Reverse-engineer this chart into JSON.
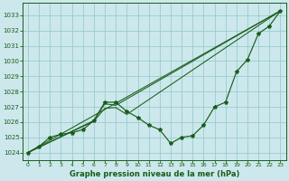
{
  "bg_color": "#cce8ec",
  "grid_color": "#99cccc",
  "line_color": "#1a5c1a",
  "xlabel": "Graphe pression niveau de la mer (hPa)",
  "xlim": [
    -0.5,
    23.5
  ],
  "ylim": [
    1023.5,
    1033.8
  ],
  "yticks": [
    1024,
    1025,
    1026,
    1027,
    1028,
    1029,
    1030,
    1031,
    1032,
    1033
  ],
  "xticks": [
    0,
    1,
    2,
    3,
    4,
    5,
    6,
    7,
    8,
    9,
    10,
    11,
    12,
    13,
    14,
    15,
    16,
    17,
    18,
    19,
    20,
    21,
    22,
    23
  ],
  "series_main": {
    "x": [
      0,
      1,
      2,
      3,
      4,
      5,
      6,
      7,
      8,
      9,
      10,
      11,
      12,
      13,
      14,
      15,
      16,
      17,
      18,
      19,
      20,
      21,
      22,
      23
    ],
    "y": [
      1024.0,
      1024.4,
      1025.0,
      1025.2,
      1025.3,
      1025.5,
      1026.1,
      1027.3,
      1027.3,
      1026.7,
      1026.3,
      1025.8,
      1025.5,
      1024.6,
      1025.0,
      1025.1,
      1025.8,
      1027.0,
      1027.3,
      1029.3,
      1030.1,
      1031.8,
      1032.3,
      1033.3
    ]
  },
  "series_line1": {
    "x": [
      0,
      23
    ],
    "y": [
      1024.0,
      1033.3
    ]
  },
  "series_line2": {
    "x": [
      0,
      6,
      7,
      8,
      23
    ],
    "y": [
      1024.0,
      1026.1,
      1027.2,
      1027.1,
      1033.3
    ]
  },
  "series_line3": {
    "x": [
      0,
      6,
      7,
      8,
      9,
      23
    ],
    "y": [
      1024.0,
      1026.05,
      1026.9,
      1026.95,
      1026.5,
      1033.3
    ]
  }
}
